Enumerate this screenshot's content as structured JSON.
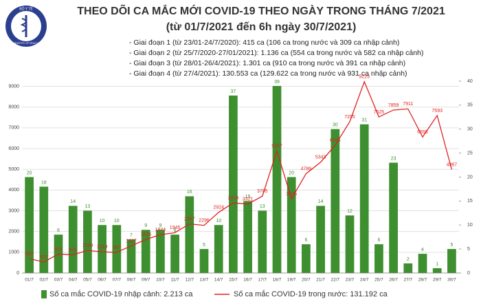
{
  "logo": {
    "top": "BỘ Y TẾ",
    "bottom": "MINISTRY OF HEALTH"
  },
  "chart_data": {
    "type": "bar_line",
    "title": "THEO DÕI CA MẮC MỚI COVID-19 THEO NGÀY TRONG THÁNG 7/2021",
    "subtitle": "(từ 01/7/2021 đến 6h ngày 30/7/2021)",
    "annotations": [
      "- Giai đoạn 1 (từ 23/01-24/7/2020): 415 ca (106 ca trong nước và 309 ca nhập cảnh)",
      "- Giai đoạn 2 (từ 25/7/2020-27/01/2021): 1.136 ca (554 ca trong nước và 582 ca nhập cảnh)",
      "- Giai đoạn 3 (từ 28/01-26/4/2021): 1.301 ca (910 ca trong nước và 391 ca nhập cảnh)",
      "- Giai đoạn 4 (từ 27/4/2021): 130.553 ca (129.622 ca trong nước và 931 ca nhập cảnh)"
    ],
    "categories": [
      "01/7",
      "02/7",
      "03/7",
      "04/7",
      "05/7",
      "06/7",
      "07/7",
      "08/7",
      "09/7",
      "10/7",
      "11/7",
      "12/7",
      "13/7",
      "14/7",
      "15/7",
      "16/7",
      "17/7",
      "18/7",
      "19/7",
      "20/7",
      "21/7",
      "22/7",
      "23/7",
      "24/7",
      "25/7",
      "26/7",
      "27/7",
      "28/7",
      "29/7",
      "30/7"
    ],
    "series": [
      {
        "name": "Số ca mắc COVID-19 nhập cảnh: 2.213 ca",
        "color": "#3e8f2f",
        "kind": "bar",
        "axis": "y2",
        "values": [
          20,
          18,
          8,
          14,
          13,
          10,
          10,
          7,
          9,
          9,
          8,
          16,
          5,
          10,
          37,
          15,
          13,
          39,
          20,
          6,
          14,
          30,
          12,
          31,
          6,
          23,
          2,
          4,
          1,
          5
        ]
      },
      {
        "name": "Số ca mắc COVID-19 trong nước: 131.192 ca",
        "color": "#e02020",
        "kind": "line",
        "values": [
          693,
          527,
          914,
          876,
          1089,
          1019,
          997,
          1307,
          1616,
          1844,
          1945,
          2367,
          2296,
          2924,
          3379,
          3321,
          3705,
          5887,
          3575,
          4789,
          5343,
          6164,
          7295,
          9225,
          7525,
          7859,
          7911,
          6555,
          7593,
          4987
        ]
      }
    ],
    "ylim": [
      0,
      9250
    ],
    "yticks": [
      0,
      1000,
      2000,
      3000,
      4000,
      5000,
      6000,
      7000,
      8000,
      9000
    ],
    "y2lim": [
      0,
      40
    ],
    "y2ticks": [
      0,
      5,
      10,
      15,
      20,
      25,
      30,
      35,
      40
    ],
    "grid": true
  }
}
